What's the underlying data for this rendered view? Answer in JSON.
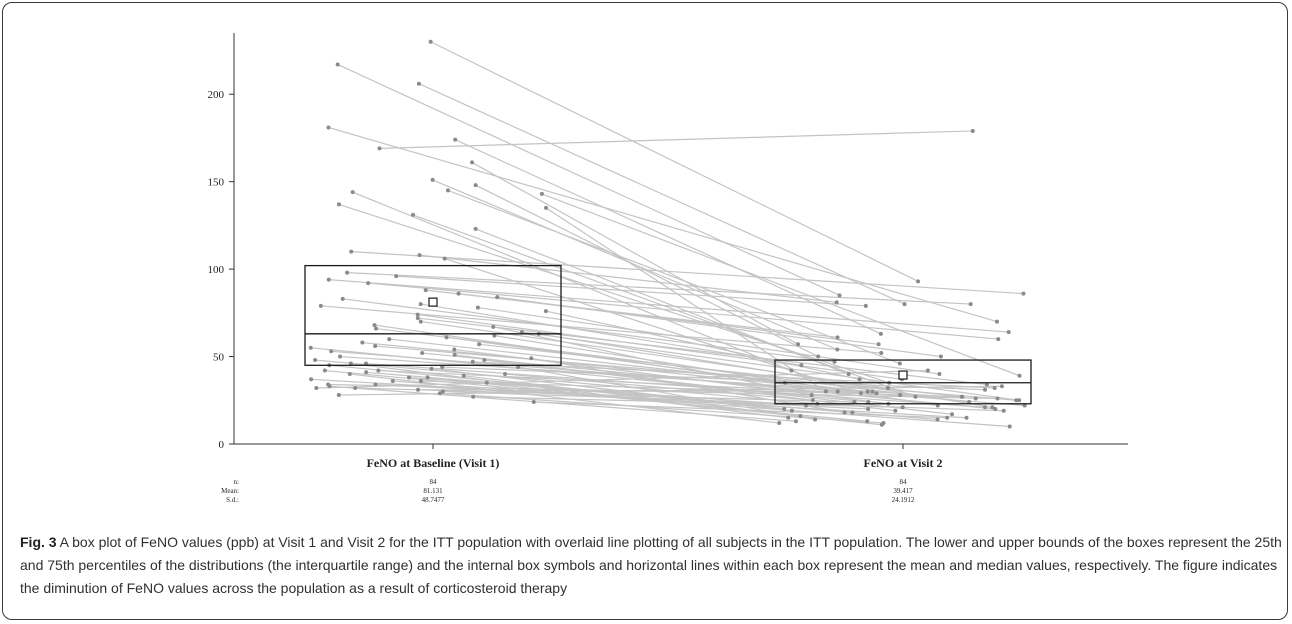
{
  "chart_data": {
    "type": "box",
    "categories": [
      "FeNO at Baseline (Visit 1)",
      "FeNO at Visit 2"
    ],
    "ylim": [
      0,
      235
    ],
    "yticks": [
      0,
      50,
      100,
      150,
      200
    ],
    "boxes": [
      {
        "category": "FeNO at Baseline (Visit 1)",
        "q1": 45,
        "median": 63,
        "q3": 102,
        "mean": 81.131
      },
      {
        "category": "FeNO at Visit 2",
        "q1": 23,
        "median": 35,
        "q3": 48,
        "mean": 39.417
      }
    ],
    "stats": {
      "labels": [
        "n:",
        "Mean:",
        "S.d.:"
      ],
      "columns": [
        [
          "84",
          "81.131",
          "48.7477"
        ],
        [
          "84",
          "39.417",
          "24.1912"
        ]
      ]
    },
    "subjects": [
      [
        230,
        93
      ],
      [
        217,
        85
      ],
      [
        206,
        80
      ],
      [
        181,
        70
      ],
      [
        174,
        63
      ],
      [
        169,
        179
      ],
      [
        161,
        57
      ],
      [
        151,
        54
      ],
      [
        148,
        50
      ],
      [
        145,
        46
      ],
      [
        144,
        42
      ],
      [
        143,
        39
      ],
      [
        137,
        35
      ],
      [
        135,
        30
      ],
      [
        131,
        27
      ],
      [
        123,
        40
      ],
      [
        110,
        86
      ],
      [
        108,
        81
      ],
      [
        106,
        29
      ],
      [
        98,
        80
      ],
      [
        96,
        79
      ],
      [
        94,
        64
      ],
      [
        92,
        60
      ],
      [
        88,
        61
      ],
      [
        86,
        57
      ],
      [
        84,
        50
      ],
      [
        83,
        47
      ],
      [
        80,
        45
      ],
      [
        79,
        52
      ],
      [
        78,
        40
      ],
      [
        76,
        37
      ],
      [
        74,
        37
      ],
      [
        72,
        34
      ],
      [
        70,
        32
      ],
      [
        68,
        30
      ],
      [
        67,
        28
      ],
      [
        66,
        24
      ],
      [
        64,
        25
      ],
      [
        63,
        21
      ],
      [
        62,
        22
      ],
      [
        61,
        35
      ],
      [
        60,
        30
      ],
      [
        58,
        29
      ],
      [
        57,
        27
      ],
      [
        56,
        25
      ],
      [
        55,
        24
      ],
      [
        54,
        23
      ],
      [
        53,
        22
      ],
      [
        52,
        20
      ],
      [
        51,
        19
      ],
      [
        50,
        26
      ],
      [
        49,
        18
      ],
      [
        48,
        23
      ],
      [
        48,
        17
      ],
      [
        47,
        32
      ],
      [
        46,
        21
      ],
      [
        46,
        15
      ],
      [
        45,
        20
      ],
      [
        44,
        31
      ],
      [
        44,
        14
      ],
      [
        43,
        19
      ],
      [
        42,
        28
      ],
      [
        42,
        13
      ],
      [
        41,
        18
      ],
      [
        40,
        25
      ],
      [
        40,
        12
      ],
      [
        39,
        16
      ],
      [
        38,
        22
      ],
      [
        38,
        11
      ],
      [
        37,
        15
      ],
      [
        36,
        27
      ],
      [
        36,
        10
      ],
      [
        35,
        14
      ],
      [
        34,
        20
      ],
      [
        34,
        26
      ],
      [
        33,
        13
      ],
      [
        32,
        24
      ],
      [
        32,
        42
      ],
      [
        31,
        30
      ],
      [
        30,
        19
      ],
      [
        29,
        12
      ],
      [
        28,
        33
      ],
      [
        27,
        21
      ],
      [
        24,
        15
      ]
    ]
  },
  "caption": {
    "label": "Fig. 3",
    "text": " A box plot of FeNO values (ppb) at Visit 1 and Visit 2 for the ITT population with overlaid line plotting of all subjects in the ITT population. The lower and upper bounds of the boxes represent the 25th and 75th percentiles of the distributions (the interquartile range) and the internal box symbols and horizontal lines within each box represent the mean and median values, respectively. The figure indicates the diminution of FeNO values across the population as a result of corticosteroid therapy"
  },
  "colors": {
    "subject_line": "#c4c4c4",
    "point": "#8a8a8a",
    "box": "#1a1a1a",
    "axis": "#333333"
  }
}
